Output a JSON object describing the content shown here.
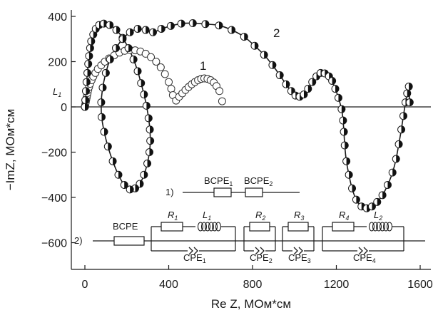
{
  "chart_data": {
    "type": "scatter",
    "xlabel": "Re Z, МОм*см",
    "ylabel": "−ImZ, МОм*см",
    "xlim": [
      -30,
      1640
    ],
    "ylim": [
      -720,
      410
    ],
    "xticks": [
      0,
      400,
      800,
      1200,
      1600
    ],
    "yticks": [
      -600,
      -400,
      -200,
      0,
      200,
      400
    ],
    "xtick_labels": [
      "0",
      "400",
      "800",
      "1200",
      "1600"
    ],
    "ytick_labels": [
      "−600",
      "−400",
      "−200",
      "0",
      "200",
      "400"
    ],
    "zero_line": true,
    "grid": false,
    "series": [
      {
        "label": "1",
        "marker": "open-circle",
        "fit_line": false,
        "x": [
          0,
          2,
          4,
          6,
          8,
          10,
          13,
          16,
          20,
          25,
          32,
          40,
          50,
          62,
          78,
          95,
          115,
          140,
          165,
          190,
          215,
          240,
          265,
          290,
          315,
          340,
          362,
          382,
          400,
          412,
          420,
          435,
          450,
          465,
          480,
          495,
          510,
          525,
          540,
          555,
          570,
          585,
          600,
          615,
          628,
          642,
          655
        ],
        "y": [
          0,
          10,
          20,
          30,
          40,
          50,
          62,
          75,
          88,
          102,
          118,
          134,
          150,
          168,
          184,
          200,
          214,
          228,
          240,
          248,
          252,
          250,
          245,
          235,
          220,
          200,
          175,
          145,
          110,
          80,
          52,
          28,
          45,
          60,
          75,
          88,
          100,
          110,
          118,
          124,
          126,
          124,
          118,
          108,
          92,
          70,
          25
        ]
      },
      {
        "label": "2",
        "marker": "half-filled-circle",
        "fit_line": true,
        "x": [
          0,
          2,
          5,
          8,
          12,
          16,
          20,
          25,
          30,
          40,
          52,
          68,
          90,
          118,
          150,
          180,
          208,
          232,
          252,
          268,
          282,
          294,
          304,
          310,
          312,
          308,
          298,
          282,
          262,
          240,
          215,
          188,
          160,
          133,
          110,
          92,
          80,
          78,
          85,
          100,
          120,
          148,
          180,
          215,
          252,
          290,
          325,
          365,
          410,
          460,
          515,
          575,
          640,
          700,
          760,
          810,
          855,
          895,
          930,
          960,
          985,
          1005,
          1025,
          1045,
          1065,
          1085,
          1105,
          1125,
          1145,
          1165,
          1180,
          1195,
          1210,
          1225,
          1232,
          1236,
          1240,
          1248,
          1260,
          1275,
          1295,
          1320,
          1345,
          1370,
          1395,
          1420,
          1445,
          1468,
          1485,
          1498,
          1510,
          1520,
          1530,
          1538,
          1546,
          1550
        ],
        "y": [
          0,
          30,
          70,
          110,
          150,
          190,
          225,
          260,
          290,
          320,
          345,
          362,
          368,
          362,
          340,
          305,
          260,
          210,
          158,
          105,
          55,
          5,
          -50,
          -100,
          -150,
          -200,
          -250,
          -300,
          -340,
          -360,
          -365,
          -345,
          -300,
          -240,
          -175,
          -110,
          -45,
          20,
          85,
          150,
          210,
          260,
          300,
          330,
          345,
          340,
          330,
          345,
          358,
          368,
          370,
          366,
          360,
          340,
          310,
          270,
          230,
          185,
          140,
          100,
          70,
          50,
          45,
          55,
          80,
          110,
          135,
          150,
          148,
          135,
          115,
          80,
          40,
          -10,
          -60,
          -110,
          -170,
          -240,
          -300,
          -360,
          -410,
          -440,
          -448,
          -440,
          -420,
          -390,
          -345,
          -290,
          -230,
          -165,
          -100,
          -40,
          20,
          60,
          90,
          20
        ]
      }
    ],
    "annotations": [
      {
        "text": "L",
        "sub": "1",
        "x": -75,
        "y": 60
      }
    ],
    "circuits": [
      {
        "label": "1)",
        "elements": [
          {
            "name": "BCPE",
            "sub": "1"
          },
          {
            "name": "BCPE",
            "sub": "2"
          }
        ]
      },
      {
        "label": "2)",
        "series_element": "BCPE",
        "blocks": [
          {
            "r": "R",
            "r_sub": "1",
            "l": "L",
            "l_sub": "1",
            "cpe": "CPE",
            "cpe_sub": "1"
          },
          {
            "r": "R",
            "r_sub": "2",
            "l": "",
            "l_sub": "",
            "cpe": "CPE",
            "cpe_sub": "2"
          },
          {
            "r": "R",
            "r_sub": "3",
            "l": "",
            "l_sub": "",
            "cpe": "CPE",
            "cpe_sub": "3"
          },
          {
            "r": "R",
            "r_sub": "4",
            "l": "L",
            "l_sub": "2",
            "cpe": "CPE",
            "cpe_sub": "4"
          }
        ]
      }
    ]
  }
}
